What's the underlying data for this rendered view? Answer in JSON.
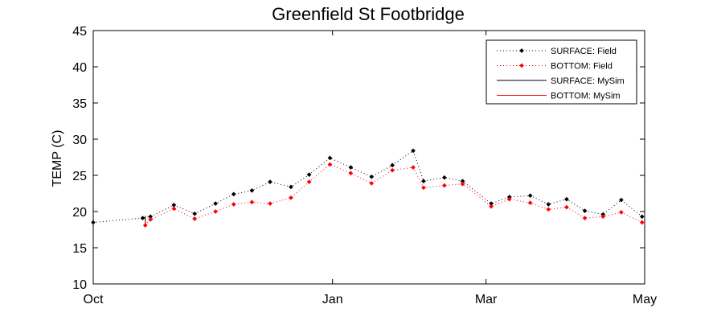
{
  "chart_data": {
    "type": "line",
    "title": "Greenfield St Footbridge",
    "xlabel": "",
    "ylabel": "TEMP (C)",
    "x_axis": {
      "type": "date",
      "range": [
        "2000-10-01",
        "2001-05-01"
      ],
      "ticks": [
        {
          "date": "2000-10-01",
          "label": "Oct"
        },
        {
          "date": "2001-01-01",
          "label": "Jan"
        },
        {
          "date": "2001-03-01",
          "label": "Mar"
        },
        {
          "date": "2001-05-01",
          "label": "May"
        }
      ]
    },
    "ylim": [
      10,
      45
    ],
    "yticks": [
      10,
      15,
      20,
      25,
      30,
      35,
      40,
      45
    ],
    "grid": false,
    "legend_position": "top-right",
    "series": [
      {
        "name": "SURFACE: Field",
        "color": "#000000",
        "line_style": "dotted",
        "marker": "diamond",
        "points": [
          {
            "x": "2000-10-01",
            "y": 18.5
          },
          {
            "x": "2000-10-20",
            "y": 19.1
          },
          {
            "x": "2000-10-23",
            "y": 19.3
          },
          {
            "x": "2000-11-01",
            "y": 20.9
          },
          {
            "x": "2000-11-09",
            "y": 19.7
          },
          {
            "x": "2000-11-17",
            "y": 21.1
          },
          {
            "x": "2000-11-24",
            "y": 22.4
          },
          {
            "x": "2000-12-01",
            "y": 22.9
          },
          {
            "x": "2000-12-08",
            "y": 24.1
          },
          {
            "x": "2000-12-16",
            "y": 23.4
          },
          {
            "x": "2000-12-23",
            "y": 25.1
          },
          {
            "x": "2000-12-31",
            "y": 27.4
          },
          {
            "x": "2001-01-08",
            "y": 26.1
          },
          {
            "x": "2001-01-16",
            "y": 24.8
          },
          {
            "x": "2001-01-24",
            "y": 26.4
          },
          {
            "x": "2001-02-01",
            "y": 28.4
          },
          {
            "x": "2001-02-05",
            "y": 24.2
          },
          {
            "x": "2001-02-13",
            "y": 24.7
          },
          {
            "x": "2001-02-20",
            "y": 24.2
          },
          {
            "x": "2001-03-03",
            "y": 21.1
          },
          {
            "x": "2001-03-10",
            "y": 22.0
          },
          {
            "x": "2001-03-18",
            "y": 22.2
          },
          {
            "x": "2001-03-25",
            "y": 21.0
          },
          {
            "x": "2001-04-01",
            "y": 21.7
          },
          {
            "x": "2001-04-08",
            "y": 20.1
          },
          {
            "x": "2001-04-15",
            "y": 19.6
          },
          {
            "x": "2001-04-22",
            "y": 21.6
          },
          {
            "x": "2001-04-30",
            "y": 19.3
          }
        ]
      },
      {
        "name": "BOTTOM: Field",
        "color": "#ff0000",
        "line_style": "dotted",
        "marker": "diamond",
        "points": [
          {
            "x": "2000-10-21",
            "y": 18.1
          },
          {
            "x": "2000-10-23",
            "y": 18.9
          },
          {
            "x": "2000-11-01",
            "y": 20.4
          },
          {
            "x": "2000-11-09",
            "y": 19.0
          },
          {
            "x": "2000-11-17",
            "y": 20.0
          },
          {
            "x": "2000-11-24",
            "y": 21.0
          },
          {
            "x": "2000-12-01",
            "y": 21.3
          },
          {
            "x": "2000-12-08",
            "y": 21.1
          },
          {
            "x": "2000-12-16",
            "y": 21.9
          },
          {
            "x": "2000-12-23",
            "y": 24.1
          },
          {
            "x": "2000-12-31",
            "y": 26.5
          },
          {
            "x": "2001-01-08",
            "y": 25.3
          },
          {
            "x": "2001-01-16",
            "y": 23.9
          },
          {
            "x": "2001-01-24",
            "y": 25.7
          },
          {
            "x": "2001-02-01",
            "y": 26.1
          },
          {
            "x": "2001-02-05",
            "y": 23.3
          },
          {
            "x": "2001-02-13",
            "y": 23.6
          },
          {
            "x": "2001-02-20",
            "y": 23.8
          },
          {
            "x": "2001-03-03",
            "y": 20.7
          },
          {
            "x": "2001-03-10",
            "y": 21.7
          },
          {
            "x": "2001-03-18",
            "y": 21.2
          },
          {
            "x": "2001-03-25",
            "y": 20.3
          },
          {
            "x": "2001-04-01",
            "y": 20.6
          },
          {
            "x": "2001-04-08",
            "y": 19.1
          },
          {
            "x": "2001-04-15",
            "y": 19.3
          },
          {
            "x": "2001-04-22",
            "y": 19.9
          },
          {
            "x": "2001-04-30",
            "y": 18.5
          }
        ]
      },
      {
        "name": "SURFACE: MySim",
        "color": "#000000",
        "line_style": "solid",
        "marker": "none",
        "points": [
          {
            "x": "2000-10-21",
            "y": 18.3
          },
          {
            "x": "2000-10-21",
            "y": 19.4
          }
        ]
      },
      {
        "name": "BOTTOM: MySim",
        "color": "#ff0000",
        "line_style": "solid",
        "marker": "none",
        "points": [
          {
            "x": "2000-10-21",
            "y": 18.0
          },
          {
            "x": "2000-10-21",
            "y": 18.8
          }
        ]
      }
    ]
  }
}
